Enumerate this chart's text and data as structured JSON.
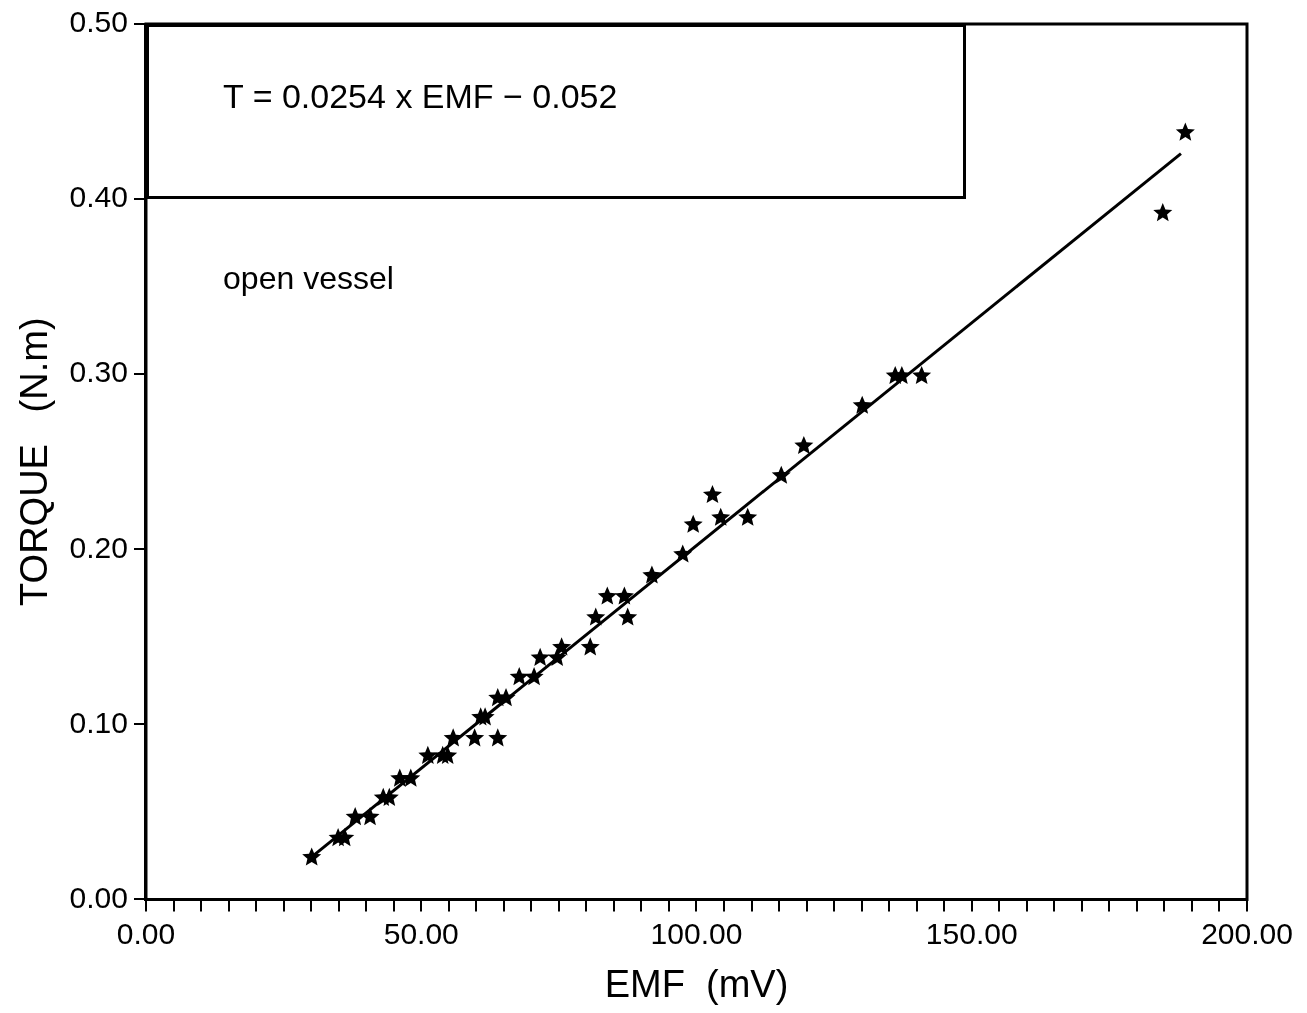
{
  "chart_data": {
    "type": "scatter",
    "xlabel": "EMF  (mV)",
    "ylabel": "TORQUE   (N.m)",
    "annotations": [
      "T = 0.0254 x EMF − 0.052",
      "open vessel"
    ],
    "xlim": [
      0,
      200
    ],
    "xticks": [
      {
        "value": 0,
        "label": "0.00"
      },
      {
        "value": 5,
        "label": null
      },
      {
        "value": 10,
        "label": null
      },
      {
        "value": 15,
        "label": null
      },
      {
        "value": 20,
        "label": null
      },
      {
        "value": 25,
        "label": null
      },
      {
        "value": 30,
        "label": null
      },
      {
        "value": 35,
        "label": null
      },
      {
        "value": 40,
        "label": null
      },
      {
        "value": 45,
        "label": null
      },
      {
        "value": 50,
        "label": "50.00"
      },
      {
        "value": 55,
        "label": null
      },
      {
        "value": 60,
        "label": null
      },
      {
        "value": 65,
        "label": null
      },
      {
        "value": 70,
        "label": null
      },
      {
        "value": 75,
        "label": null
      },
      {
        "value": 80,
        "label": null
      },
      {
        "value": 85,
        "label": null
      },
      {
        "value": 90,
        "label": null
      },
      {
        "value": 95,
        "label": null
      },
      {
        "value": 100,
        "label": "100.00"
      },
      {
        "value": 105,
        "label": null
      },
      {
        "value": 110,
        "label": null
      },
      {
        "value": 115,
        "label": null
      },
      {
        "value": 120,
        "label": null
      },
      {
        "value": 125,
        "label": null
      },
      {
        "value": 130,
        "label": null
      },
      {
        "value": 135,
        "label": null
      },
      {
        "value": 140,
        "label": null
      },
      {
        "value": 145,
        "label": null
      },
      {
        "value": 150,
        "label": "150.00"
      },
      {
        "value": 155,
        "label": null
      },
      {
        "value": 160,
        "label": null
      },
      {
        "value": 165,
        "label": null
      },
      {
        "value": 170,
        "label": null
      },
      {
        "value": 175,
        "label": null
      },
      {
        "value": 180,
        "label": null
      },
      {
        "value": 185,
        "label": null
      },
      {
        "value": 190,
        "label": null
      },
      {
        "value": 195,
        "label": null
      },
      {
        "value": 200,
        "label": "200.00"
      }
    ],
    "ylim": [
      0,
      0.5
    ],
    "yticks": [
      {
        "value": 0,
        "label": "0.00"
      },
      {
        "value": 0.1,
        "label": "0.10"
      },
      {
        "value": 0.2,
        "label": "0.20"
      },
      {
        "value": 0.3,
        "label": "0.30"
      },
      {
        "value": 0.4,
        "label": "0.40"
      },
      {
        "value": 0.5,
        "label": "0.50"
      }
    ],
    "grid": false,
    "legend": false,
    "marker": "star",
    "series": [
      {
        "color": "#000000",
        "x": [
          30.1,
          34.9,
          36.1,
          38.0,
          40.7,
          43.1,
          44.2,
          46.1,
          48.1,
          51.2,
          53.9,
          54.8,
          55.8,
          59.7,
          63.9,
          60.8,
          61.6,
          63.9,
          65.4,
          67.8,
          70.5,
          71.6,
          74.7,
          75.5,
          80.7,
          81.7,
          83.8,
          86.9,
          87.5,
          91.9,
          97.5,
          99.4,
          102.9,
          104.4,
          109.3,
          115.4,
          119.5,
          130.1,
          136.1,
          137.3,
          140.9,
          184.7,
          188.8
        ],
        "values": [
          0.024,
          0.035,
          0.035,
          0.047,
          0.047,
          0.058,
          0.058,
          0.069,
          0.069,
          0.082,
          0.082,
          0.082,
          0.092,
          0.092,
          0.092,
          0.104,
          0.104,
          0.115,
          0.115,
          0.127,
          0.127,
          0.138,
          0.138,
          0.144,
          0.144,
          0.161,
          0.173,
          0.173,
          0.161,
          0.185,
          0.197,
          0.214,
          0.231,
          0.218,
          0.218,
          0.242,
          0.259,
          0.282,
          0.299,
          0.299,
          0.299,
          0.392,
          0.438
        ]
      },
      {
        "type": "line",
        "color": "#000000",
        "marker": "none",
        "x": [
          30,
          188
        ],
        "values": [
          0.024,
          0.426
        ]
      }
    ]
  }
}
